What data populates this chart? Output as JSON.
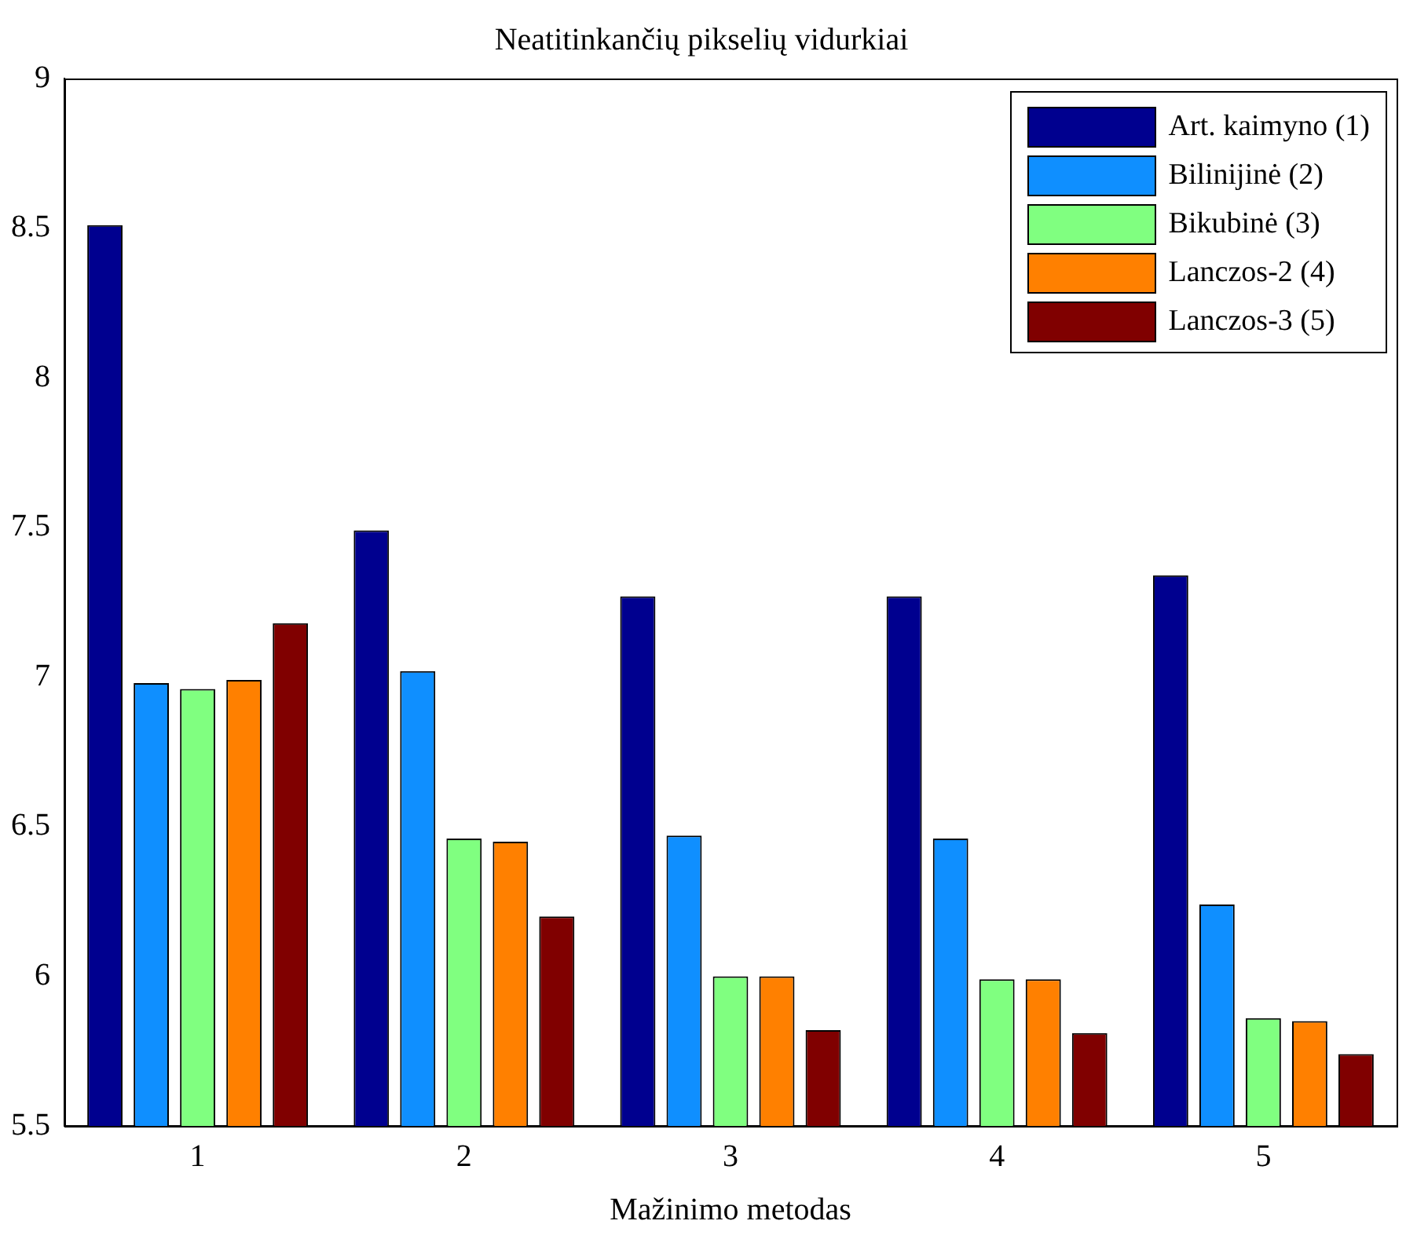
{
  "chart_data": {
    "type": "bar",
    "title": "Neatitinkančių pikselių vidurkiai",
    "xlabel": "Mažinimo metodas",
    "categories": [
      "1",
      "2",
      "3",
      "4",
      "5"
    ],
    "series": [
      {
        "name": "Art. kaimyno (1)",
        "color": "#00008f",
        "values": [
          8.51,
          7.49,
          7.27,
          7.27,
          7.34
        ]
      },
      {
        "name": "Bilinijinė (2)",
        "color": "#0f8fff",
        "values": [
          6.98,
          7.02,
          6.47,
          6.46,
          6.24
        ]
      },
      {
        "name": "Bikubinė (3)",
        "color": "#80ff80",
        "values": [
          6.96,
          6.46,
          6.0,
          5.99,
          5.86
        ]
      },
      {
        "name": "Lanczos-2 (4)",
        "color": "#ff8000",
        "values": [
          6.99,
          6.45,
          6.0,
          5.99,
          5.85
        ]
      },
      {
        "name": "Lanczos-3 (5)",
        "color": "#800000",
        "values": [
          7.18,
          6.2,
          5.82,
          5.81,
          5.74
        ]
      }
    ],
    "ylim": [
      5.5,
      9
    ],
    "yticks": [
      5.5,
      6,
      6.5,
      7,
      7.5,
      8,
      8.5,
      9
    ],
    "grid": false,
    "legend": "top right"
  }
}
